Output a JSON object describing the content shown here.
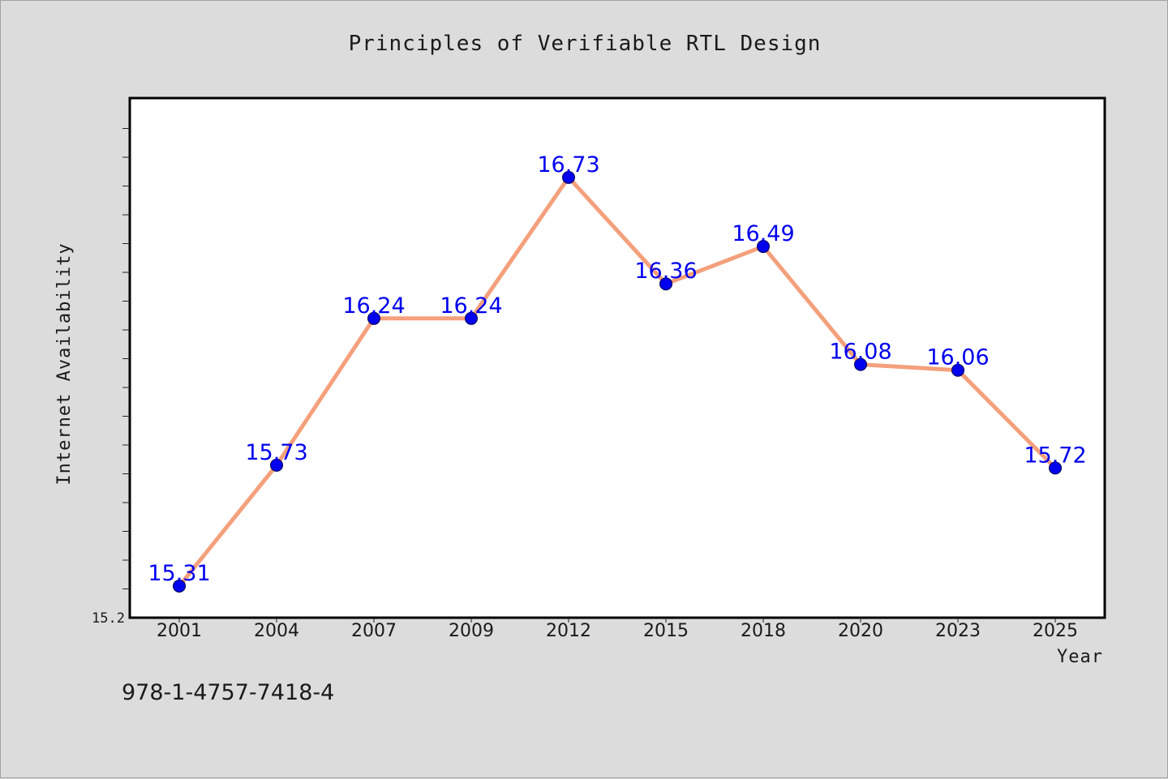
{
  "chart_data": {
    "type": "line",
    "title": "Principles of Verifiable RTL Design",
    "xlabel": "Year",
    "ylabel": "Internet Availability",
    "categories": [
      "2001",
      "2004",
      "2007",
      "2009",
      "2012",
      "2015",
      "2018",
      "2020",
      "2023",
      "2025"
    ],
    "series": [
      {
        "values": [
          15.31,
          15.73,
          16.24,
          16.24,
          16.73,
          16.36,
          16.49,
          16.08,
          16.06,
          15.72
        ],
        "data_labels": [
          "15.31",
          "15.73",
          "16.24",
          "16.24",
          "16.73",
          "16.36",
          "16.49",
          "16.08",
          "16.06",
          "15.72"
        ]
      }
    ],
    "ylim": [
      15.2,
      17.0
    ],
    "y_tick_labels": [
      "15.2"
    ],
    "y_minor_tick_step": 0.1,
    "grid": false,
    "colors": {
      "line": "#f4a07c",
      "marker": "#0000ee",
      "data_label": "#0000ee",
      "plot_background": "#ffffff",
      "page_background": "#dcdcdc"
    }
  },
  "footer": {
    "isbn": "978-1-4757-7418-4"
  }
}
